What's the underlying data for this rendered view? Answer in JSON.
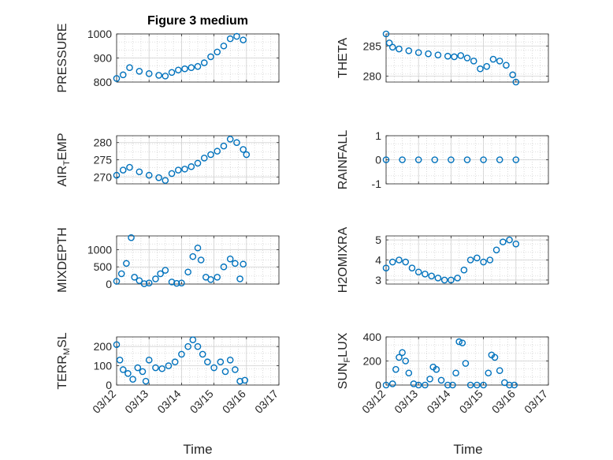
{
  "figure": {
    "title": "Figure 3 medium",
    "xlabel": "Time",
    "colors": {
      "marker": "#0072BD",
      "grid": "#d0d0d0",
      "axis": "#262626"
    }
  },
  "chart_data": [
    {
      "type": "scatter",
      "id": "pressure",
      "ylabel": "PRESSURE",
      "ylim": [
        800,
        1000
      ],
      "yticks": [
        800,
        900,
        1000
      ],
      "xticklabels": [],
      "grid": true,
      "x": [
        0,
        0.2,
        0.4,
        0.7,
        1.0,
        1.3,
        1.5,
        1.7,
        1.9,
        2.1,
        2.3,
        2.5,
        2.7,
        2.9,
        3.1,
        3.3,
        3.5,
        3.7,
        3.9
      ],
      "y": [
        815,
        830,
        860,
        845,
        835,
        828,
        825,
        840,
        850,
        855,
        860,
        865,
        880,
        905,
        925,
        950,
        980,
        990,
        975
      ]
    },
    {
      "type": "scatter",
      "id": "theta",
      "ylabel": "THETA",
      "ylim": [
        279,
        287
      ],
      "yticks": [
        280,
        285
      ],
      "xticklabels": [],
      "grid": true,
      "x": [
        0,
        0.1,
        0.2,
        0.4,
        0.7,
        1.0,
        1.3,
        1.6,
        1.9,
        2.1,
        2.3,
        2.5,
        2.7,
        2.9,
        3.1,
        3.3,
        3.5,
        3.7,
        3.9,
        4.0
      ],
      "y": [
        287,
        285.5,
        284.8,
        284.5,
        284.2,
        283.9,
        283.7,
        283.5,
        283.3,
        283.2,
        283.4,
        283.0,
        282.5,
        281.2,
        281.6,
        282.8,
        282.5,
        281.8,
        280.2,
        279
      ]
    },
    {
      "type": "scatter",
      "id": "air-temp",
      "ylabel": "AIR_TEMP",
      "ylim": [
        268,
        282
      ],
      "yticks": [
        270,
        275,
        280
      ],
      "xticklabels": [],
      "grid": true,
      "x": [
        0,
        0.2,
        0.4,
        0.7,
        1.0,
        1.3,
        1.5,
        1.7,
        1.9,
        2.1,
        2.3,
        2.5,
        2.7,
        2.9,
        3.1,
        3.3,
        3.5,
        3.7,
        3.9,
        4.0
      ],
      "y": [
        270.5,
        272,
        272.8,
        271.5,
        270.5,
        269.8,
        269,
        271,
        272,
        272.3,
        273,
        274,
        275.5,
        276.5,
        277.5,
        279,
        281,
        280,
        278,
        276.5
      ]
    },
    {
      "type": "scatter",
      "id": "rainfall",
      "ylabel": "RAINFALL",
      "ylim": [
        -1,
        1
      ],
      "yticks": [
        -1,
        0,
        1
      ],
      "xticklabels": [],
      "grid": true,
      "x": [
        0,
        0.5,
        1.0,
        1.5,
        2.0,
        2.5,
        3.0,
        3.5,
        4.0
      ],
      "y": [
        0,
        0,
        0,
        0,
        0,
        0,
        0,
        0,
        0
      ]
    },
    {
      "type": "scatter",
      "id": "mixdepth",
      "ylabel": "MIXDEPTH",
      "ylim": [
        0,
        1400
      ],
      "yticks": [
        0,
        500,
        1000
      ],
      "xticklabels": [],
      "grid": true,
      "x": [
        0,
        0.15,
        0.3,
        0.45,
        0.55,
        0.7,
        0.85,
        1.0,
        1.2,
        1.35,
        1.5,
        1.7,
        1.85,
        2.0,
        2.2,
        2.35,
        2.5,
        2.6,
        2.75,
        2.9,
        3.1,
        3.3,
        3.5,
        3.65,
        3.8,
        3.9
      ],
      "y": [
        80,
        300,
        600,
        1350,
        200,
        100,
        10,
        30,
        150,
        300,
        400,
        60,
        20,
        30,
        350,
        800,
        1050,
        700,
        200,
        130,
        200,
        500,
        730,
        600,
        150,
        580
      ]
    },
    {
      "type": "scatter",
      "id": "h2omixra",
      "ylabel": "H2OMIXRA",
      "ylim": [
        2.8,
        5.2
      ],
      "yticks": [
        3,
        4,
        5
      ],
      "xticklabels": [],
      "grid": true,
      "x": [
        0,
        0.2,
        0.4,
        0.6,
        0.8,
        1.0,
        1.2,
        1.4,
        1.6,
        1.8,
        2.0,
        2.2,
        2.4,
        2.6,
        2.8,
        3.0,
        3.2,
        3.4,
        3.6,
        3.8,
        4.0
      ],
      "y": [
        3.6,
        3.9,
        4.0,
        3.9,
        3.6,
        3.4,
        3.3,
        3.2,
        3.1,
        3.0,
        3.0,
        3.1,
        3.5,
        4.0,
        4.1,
        3.9,
        4.0,
        4.5,
        4.9,
        5.0,
        4.8
      ]
    },
    {
      "type": "scatter",
      "id": "terr-msl",
      "ylabel": "TERR_MSL",
      "ylim": [
        0,
        250
      ],
      "yticks": [
        0,
        100,
        200
      ],
      "xticklabels": [
        "03/12",
        "03/13",
        "03/14",
        "03/15",
        "03/16",
        "03/17"
      ],
      "grid": true,
      "x": [
        0,
        0.1,
        0.2,
        0.35,
        0.5,
        0.65,
        0.8,
        0.9,
        1.0,
        1.2,
        1.4,
        1.6,
        1.8,
        2.0,
        2.2,
        2.35,
        2.5,
        2.65,
        2.8,
        3.0,
        3.2,
        3.35,
        3.5,
        3.65,
        3.8,
        3.95
      ],
      "y": [
        210,
        130,
        80,
        60,
        30,
        90,
        70,
        20,
        130,
        90,
        85,
        100,
        120,
        160,
        200,
        235,
        200,
        160,
        120,
        90,
        120,
        70,
        130,
        80,
        20,
        25
      ]
    },
    {
      "type": "scatter",
      "id": "sun-flux",
      "ylabel": "SUN_FLUX",
      "ylim": [
        0,
        400
      ],
      "yticks": [
        0,
        200,
        400
      ],
      "xticklabels": [
        "03/12",
        "03/13",
        "03/14",
        "03/15",
        "03/16",
        "03/17"
      ],
      "grid": true,
      "x": [
        0,
        0.2,
        0.3,
        0.4,
        0.5,
        0.6,
        0.7,
        0.85,
        1.0,
        1.2,
        1.35,
        1.45,
        1.55,
        1.7,
        1.9,
        2.05,
        2.15,
        2.25,
        2.35,
        2.45,
        2.6,
        2.8,
        3.0,
        3.15,
        3.25,
        3.35,
        3.5,
        3.65,
        3.8,
        3.95
      ],
      "y": [
        0,
        10,
        130,
        230,
        270,
        200,
        100,
        10,
        0,
        0,
        50,
        150,
        130,
        40,
        0,
        0,
        100,
        360,
        350,
        180,
        0,
        0,
        0,
        100,
        250,
        230,
        120,
        20,
        0,
        0
      ]
    }
  ]
}
